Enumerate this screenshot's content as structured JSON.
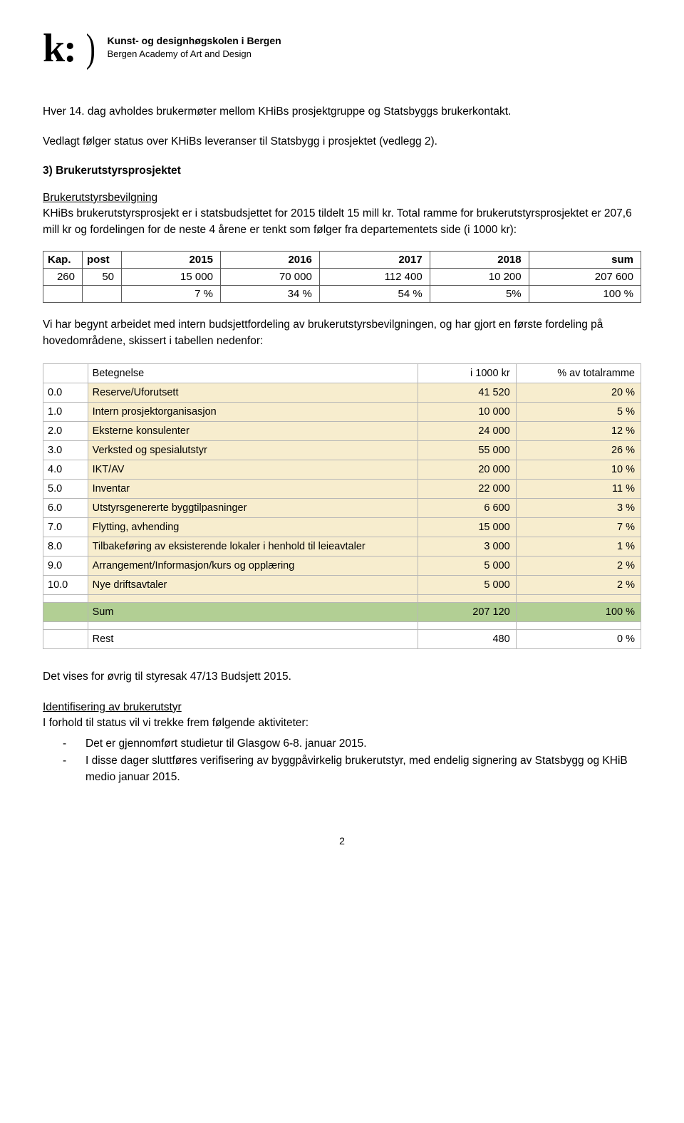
{
  "header": {
    "logo_k": "k:",
    "logo_paren": ")",
    "line1": "Kunst- og designhøgskolen i Bergen",
    "line2": "Bergen Academy of Art and Design"
  },
  "paragraphs": {
    "p1": "Hver 14. dag avholdes brukermøter mellom KHiBs prosjektgruppe og Statsbyggs brukerkontakt.",
    "p2": "Vedlagt følger status over KHiBs leveranser til Statsbygg i prosjektet (vedlegg 2).",
    "h3": "3) Brukerutstyrsprosjektet",
    "sub1": "Brukerutstyrsbevilgning",
    "p3": "KHiBs brukerutstyrsprosjekt er i statsbudsjettet for 2015 tildelt 15 mill kr. Total ramme for brukerutstyrsprosjektet er 207,6 mill kr og fordelingen for de neste 4 årene er tenkt som følger fra departementets side (i 1000 kr):",
    "p4": "Vi har begynt arbeidet med intern budsjettfordeling av brukerutstyrsbevilgningen, og har gjort en første fordeling på hovedområdene, skissert i tabellen nedenfor:",
    "p5": "Det vises for øvrig til styresak 47/13 Budsjett 2015.",
    "sub2": "Identifisering av brukerutstyr",
    "p6": "I forhold til status vil vi trekke frem følgende aktiviteter:",
    "li1": "Det er gjennomført studietur til Glasgow 6-8. januar 2015.",
    "li2": "I disse dager sluttføres verifisering av byggpåvirkelig brukerutstyr, med endelig signering av Statsbygg og KHiB medio januar 2015."
  },
  "table1": {
    "headers": [
      "Kap.",
      "post",
      "2015",
      "2016",
      "2017",
      "2018",
      "sum"
    ],
    "r1": [
      "260",
      "50",
      "15 000",
      "70 000",
      "112 400",
      "10 200",
      "207 600"
    ],
    "r2": [
      "",
      "",
      "7 %",
      "34 %",
      "54 %",
      "5%",
      "100 %"
    ]
  },
  "table2": {
    "headers": [
      "",
      "Betegnelse",
      "i 1000 kr",
      "% av totalramme"
    ],
    "rows": [
      {
        "id": "0.0",
        "desc": "Reserve/Uforutsett",
        "val": "41 520",
        "pct": "20 %"
      },
      {
        "id": "1.0",
        "desc": "Intern prosjektorganisasjon",
        "val": "10 000",
        "pct": "5 %"
      },
      {
        "id": "2.0",
        "desc": "Eksterne konsulenter",
        "val": "24 000",
        "pct": "12 %"
      },
      {
        "id": "3.0",
        "desc": "Verksted og spesialutstyr",
        "val": "55 000",
        "pct": "26 %"
      },
      {
        "id": "4.0",
        "desc": "IKT/AV",
        "val": "20 000",
        "pct": "10 %"
      },
      {
        "id": "5.0",
        "desc": "Inventar",
        "val": "22 000",
        "pct": "11 %"
      },
      {
        "id": "6.0",
        "desc": "Utstyrsgenererte byggtilpasninger",
        "val": "6 600",
        "pct": "3 %"
      },
      {
        "id": "7.0",
        "desc": "Flytting, avhending",
        "val": "15 000",
        "pct": "7 %"
      },
      {
        "id": "8.0",
        "desc": "Tilbakeføring av eksisterende lokaler i henhold til leieavtaler",
        "val": "3 000",
        "pct": "1 %"
      },
      {
        "id": "9.0",
        "desc": "Arrangement/Informasjon/kurs og opplæring",
        "val": "5 000",
        "pct": "2 %"
      },
      {
        "id": "10.0",
        "desc": "Nye driftsavtaler",
        "val": "5 000",
        "pct": "2 %"
      }
    ],
    "sum": {
      "label": "Sum",
      "val": "207 120",
      "pct": "100 %"
    },
    "rest": {
      "label": "Rest",
      "val": "480",
      "pct": "0 %"
    }
  },
  "page_num": "2"
}
